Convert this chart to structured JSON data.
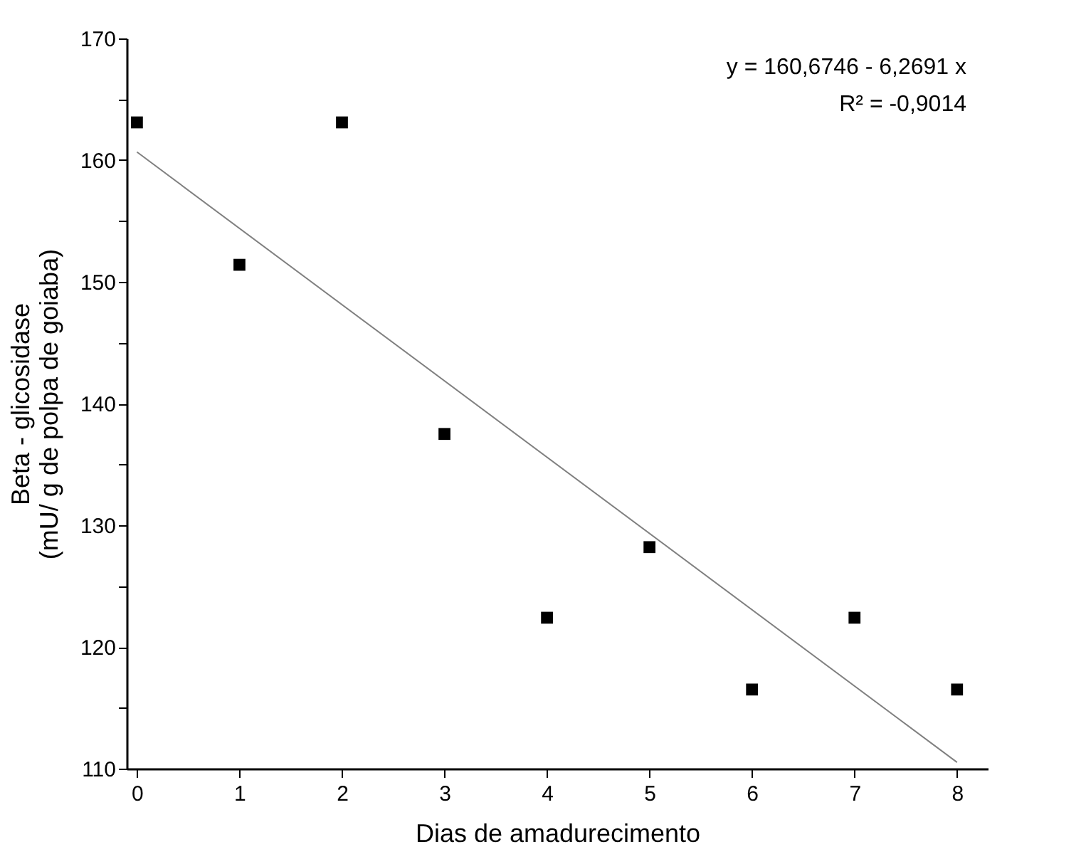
{
  "chart_data": {
    "type": "scatter",
    "xlabel": "Dias de amadurecimento",
    "ylabel": "Beta - glicosidase\n(mU/ g de polpa de goiaba)",
    "x": [
      0,
      1,
      2,
      3,
      4,
      5,
      6,
      7,
      8
    ],
    "series": [
      {
        "color": "#000000",
        "marker": "square",
        "values": [
          163.1,
          151.4,
          163.1,
          137.5,
          122.4,
          128.2,
          116.5,
          122.4,
          116.5
        ]
      },
      {
        "type": "line",
        "color": "#808080",
        "x": [
          0,
          8
        ],
        "values": [
          160.67,
          110.52
        ]
      }
    ],
    "xlim": [
      -0.1,
      8.3
    ],
    "xticks": [
      0,
      1,
      2,
      3,
      4,
      5,
      6,
      7,
      8
    ],
    "ylim": [
      110,
      170
    ],
    "yticks": [
      110,
      {
        "value": 115,
        "label": null
      },
      120,
      {
        "value": 125,
        "label": null
      },
      130,
      {
        "value": 135,
        "label": null
      },
      140,
      {
        "value": 145,
        "label": null
      },
      150,
      {
        "value": 155,
        "label": null
      },
      160,
      {
        "value": 165,
        "label": null
      },
      170
    ],
    "annotations": [
      "y = 160,6746 - 6,2691 x",
      "R² = -0,9014"
    ],
    "grid": false
  }
}
